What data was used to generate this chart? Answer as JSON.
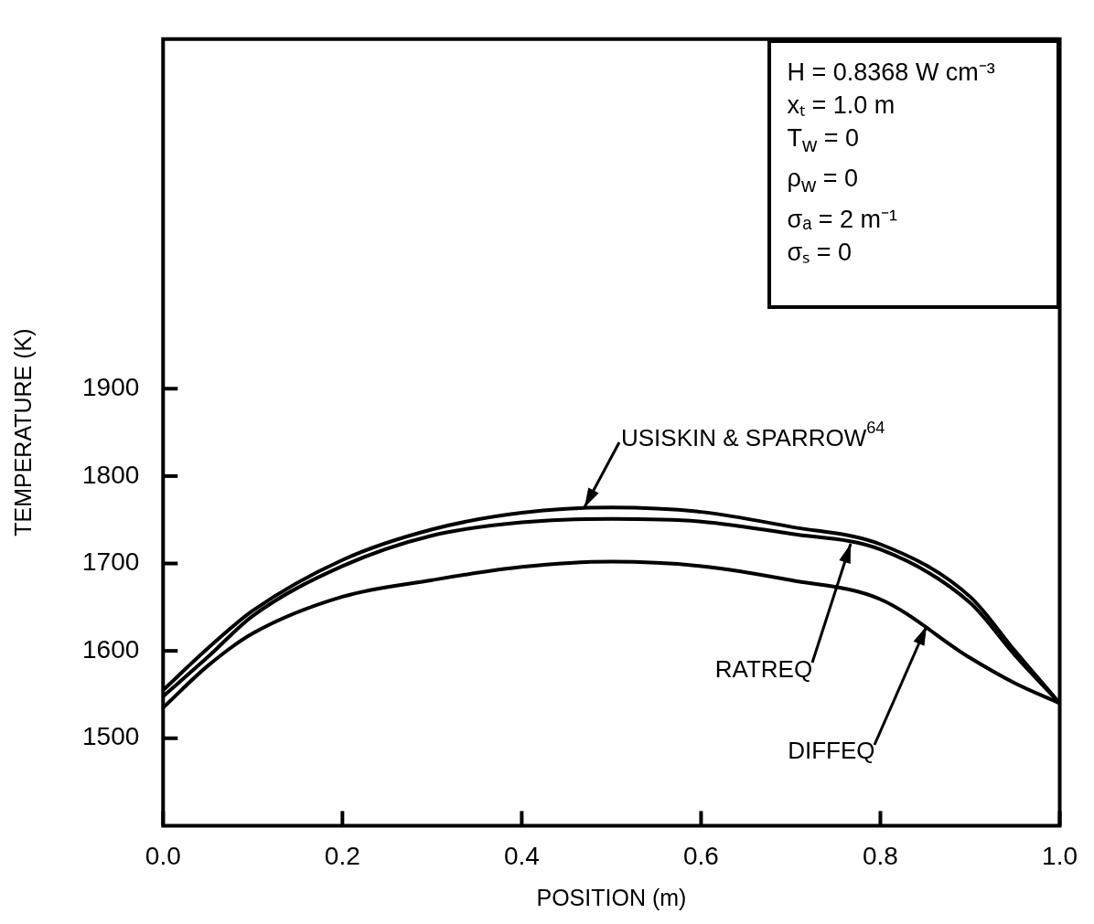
{
  "chart_data": {
    "type": "line",
    "xlabel": "POSITION (m)",
    "ylabel": "TEMPERATURE (K)",
    "xlim": [
      0,
      1
    ],
    "xticks": [
      {
        "value": 0,
        "label": "0.0"
      },
      0.2,
      0.4,
      0.6,
      0.8,
      {
        "value": 1,
        "label": "1.0"
      }
    ],
    "ylim": [
      1400,
      2300
    ],
    "yticks": [
      1500,
      1600,
      1700,
      1800,
      1900
    ],
    "grid": false,
    "legend": false,
    "marker": "none",
    "line_style": "solid",
    "series": [
      {
        "color": "#000000",
        "x": [
          0,
          0.05,
          0.1,
          0.2,
          0.3,
          0.4,
          0.5,
          0.6,
          0.7,
          0.8,
          0.9,
          0.95,
          1
        ],
        "values": [
          1555,
          1603,
          1646,
          1704,
          1739,
          1758,
          1764,
          1759,
          1742,
          1722,
          1662,
          1600,
          1540
        ]
      },
      {
        "color": "#000000",
        "x": [
          0,
          0.05,
          0.1,
          0.2,
          0.3,
          0.4,
          0.5,
          0.6,
          0.7,
          0.8,
          0.9,
          0.95,
          1
        ],
        "values": [
          1548,
          1593,
          1640,
          1697,
          1732,
          1747,
          1751,
          1748,
          1734,
          1716,
          1655,
          1595,
          1540
        ]
      },
      {
        "color": "#000000",
        "x": [
          0,
          0.05,
          0.1,
          0.2,
          0.3,
          0.4,
          0.5,
          0.6,
          0.7,
          0.8,
          0.9,
          0.95,
          1
        ],
        "values": [
          1535,
          1583,
          1620,
          1662,
          1681,
          1696,
          1702,
          1697,
          1681,
          1659,
          1592,
          1563,
          1540
        ]
      }
    ],
    "annotations": [
      {
        "text": "USISKIN & SPARROW$^{64}$",
        "x": 0.47,
        "y": 1764
      },
      {
        "text": "RATREQ",
        "x": 0.767,
        "y": 1722
      },
      {
        "text": "DIFFEQ",
        "x": 0.852,
        "y": 1628
      },
      "H = 0.8368 W cm⁻³",
      "xₜ = 1.0 m",
      "T$_{w}$ = 0",
      "ρ$_{w}$ = 0",
      "σₐ = 2 m⁻¹",
      "σₛ = 0"
    ]
  }
}
